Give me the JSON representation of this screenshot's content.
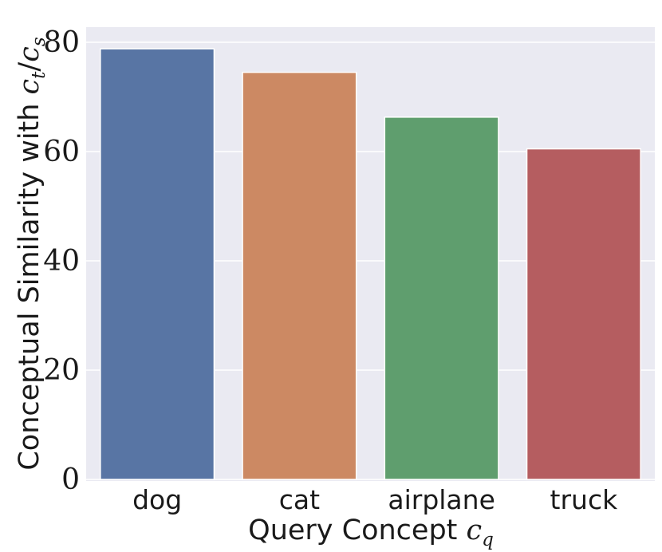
{
  "chart_data": {
    "type": "bar",
    "categories": [
      "dog",
      "cat",
      "airplane",
      "truck"
    ],
    "values": [
      78.8,
      74.5,
      66.3,
      60.5
    ],
    "colors": [
      "#5875a4",
      "#cc8963",
      "#5f9e6e",
      "#b55d60"
    ],
    "background": "#eaeaf2",
    "grid": true,
    "ylim": [
      0,
      83
    ],
    "yticks": [
      0,
      20,
      40,
      60,
      80
    ],
    "xlabel": {
      "text": "Query Concept ",
      "math": "c",
      "sub": "q"
    },
    "ylabel": {
      "text": "Conceptual Similarity with ",
      "math1": "c",
      "sub1": "t",
      "slash": "/",
      "math2": "c",
      "sub2": "s"
    }
  }
}
